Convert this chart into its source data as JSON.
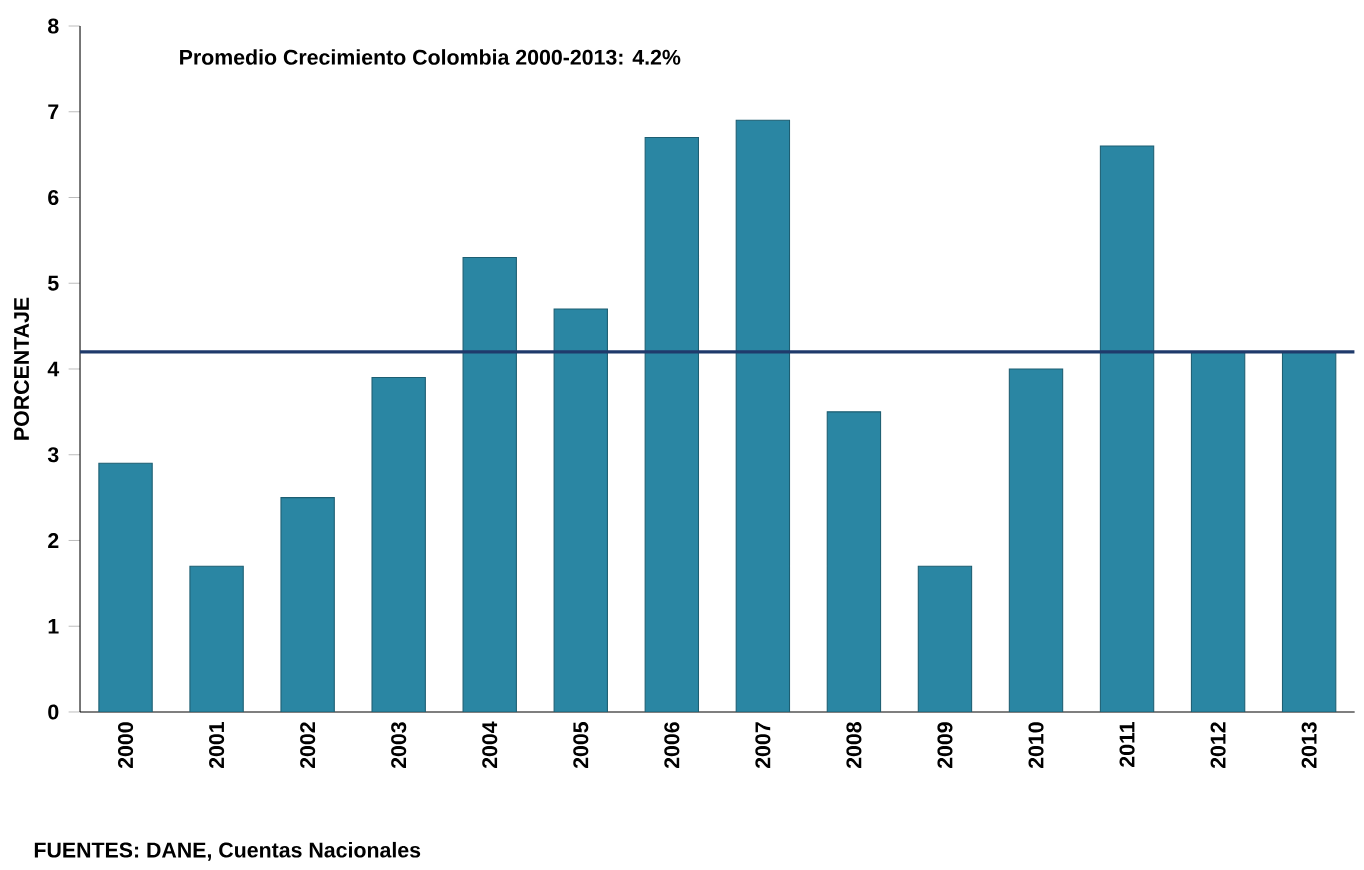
{
  "chart_data": {
    "type": "bar",
    "title": "Promedio Crecimiento Colombia 2000-2013:  4.2%",
    "ylabel": "PORCENTAJE",
    "categories": [
      "2000",
      "2001",
      "2002",
      "2003",
      "2004",
      "2005",
      "2006",
      "2007",
      "2008",
      "2009",
      "2010",
      "2011",
      "2012",
      "2013"
    ],
    "values": [
      2.9,
      1.7,
      2.5,
      3.9,
      5.3,
      4.7,
      6.7,
      6.9,
      3.5,
      1.7,
      4.0,
      6.6,
      4.2,
      4.2
    ],
    "color": "#2a86a3",
    "ylim": [
      0,
      8
    ],
    "yticks": [
      0,
      1,
      2,
      3,
      4,
      5,
      6,
      7,
      8
    ],
    "ref_lines": [
      {
        "axis": "y",
        "value": 4.2,
        "color": "#1f3a6b"
      }
    ],
    "annotations": [
      "FUENTES: DANE, Cuentas Nacionales"
    ],
    "grid": false
  }
}
